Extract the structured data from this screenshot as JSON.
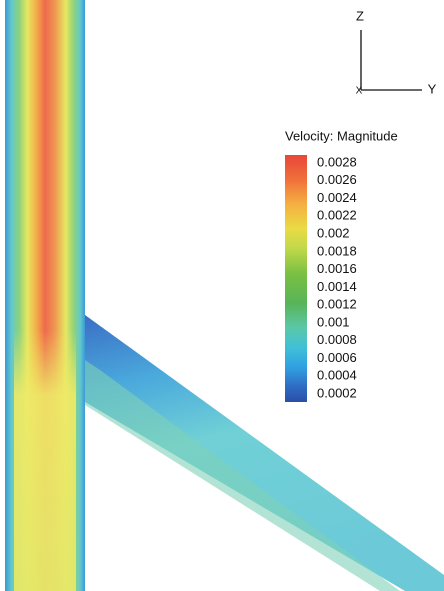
{
  "legend": {
    "title": "Velocity: Magnitude",
    "labels": [
      "0.0028",
      "0.0026",
      "0.0024",
      "0.0022",
      "0.002",
      "0.0018",
      "0.0016",
      "0.0014",
      "0.0012",
      "0.001",
      "0.0008",
      "0.0006",
      "0.0004",
      "0.0002"
    ]
  },
  "axes": {
    "z": "Z",
    "y": "Y",
    "x": "X"
  }
}
